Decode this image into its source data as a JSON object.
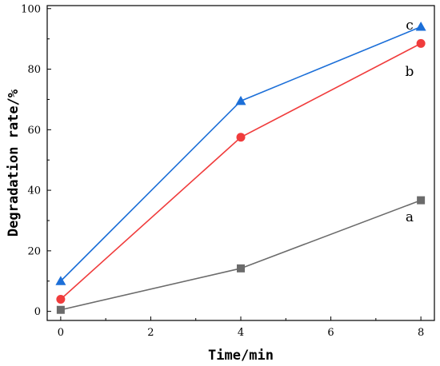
{
  "chart_data": {
    "type": "line",
    "xlabel": "Time/min",
    "ylabel": "Degradation rate/%",
    "xlim": [
      -0.3,
      8.3
    ],
    "ylim": [
      -3,
      101
    ],
    "xticks": [
      0,
      2,
      4,
      6,
      8
    ],
    "yticks": [
      0,
      20,
      40,
      60,
      80,
      100
    ],
    "x": [
      0,
      4,
      8
    ],
    "grid": false,
    "series": [
      {
        "name": "a",
        "values": [
          0.5,
          14.2,
          36.7
        ],
        "color": "#6b6b6b",
        "marker": "square"
      },
      {
        "name": "b",
        "values": [
          4.0,
          57.5,
          88.5
        ],
        "color": "#f03c3c",
        "marker": "circle"
      },
      {
        "name": "c",
        "values": [
          10.0,
          69.5,
          94.0
        ],
        "color": "#1c6fd8",
        "marker": "triangle"
      }
    ]
  }
}
